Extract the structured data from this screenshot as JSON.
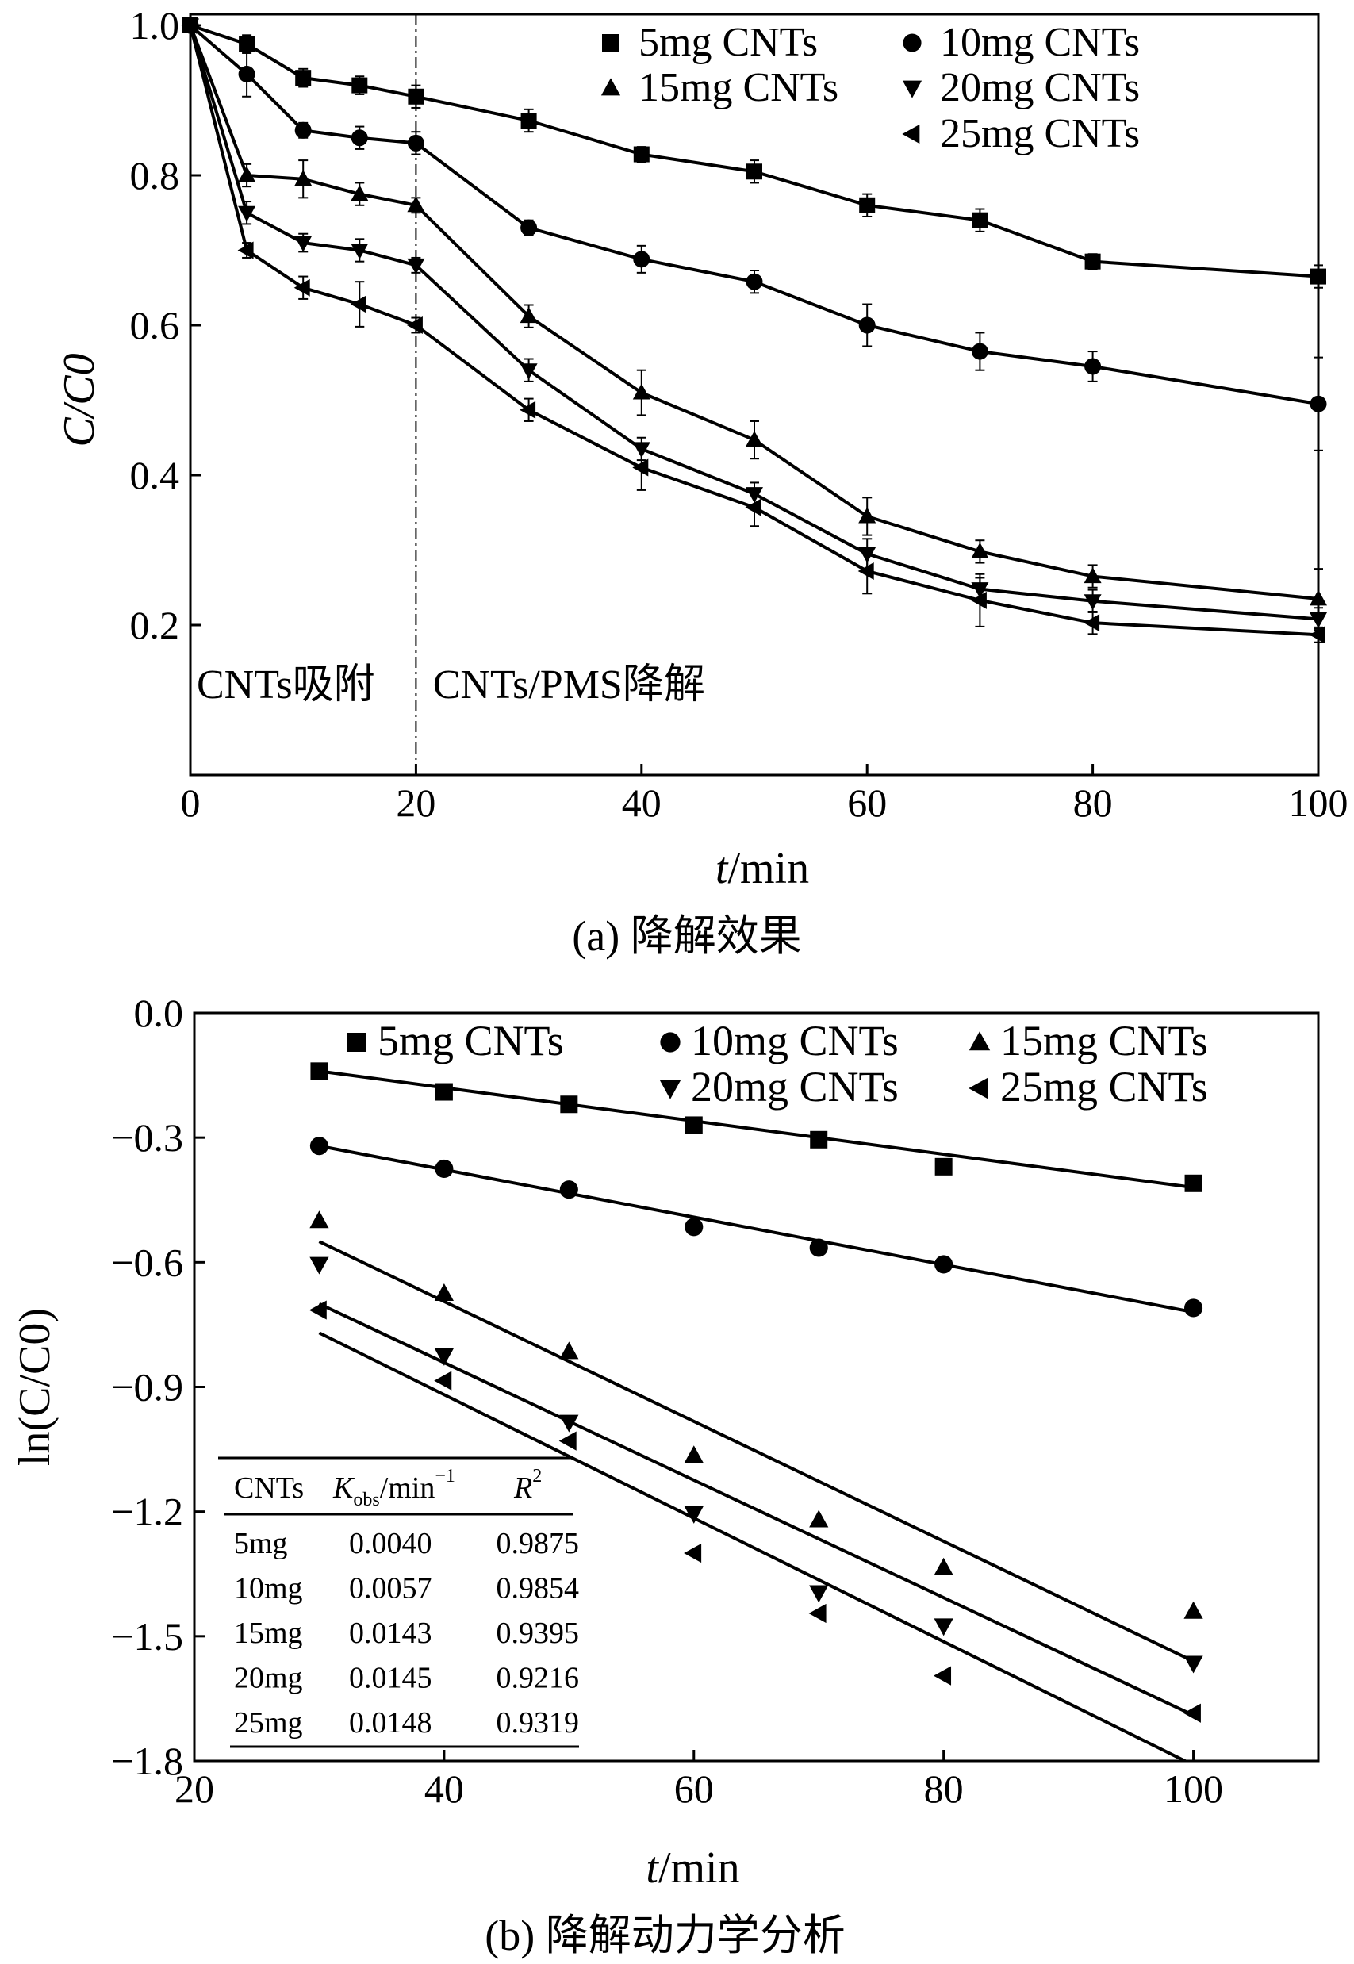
{
  "chart_data": [
    {
      "type": "line",
      "title": "(a) 降解效果",
      "xlabel_italic": "t",
      "xlabel_unit": "/min",
      "ylabel": "C/C0",
      "xlim": [
        0,
        100
      ],
      "ylim": [
        0,
        1.0
      ],
      "xticks": [
        0,
        20,
        40,
        60,
        80,
        100
      ],
      "yticks": [
        0.2,
        0.4,
        0.6,
        0.8,
        1.0
      ],
      "ytick_labels": [
        "0.2",
        "0.4",
        "0.6",
        "0.8",
        "1.0"
      ],
      "annotations": {
        "left": "CNTs吸附",
        "right": "CNTs/PMS降解",
        "divider_x": 20
      },
      "legend_position": "top-right",
      "x": [
        0,
        5,
        10,
        15,
        20,
        30,
        40,
        50,
        60,
        70,
        80,
        100
      ],
      "series": [
        {
          "name": "5mg CNTs",
          "marker": "square",
          "values": [
            1.0,
            0.975,
            0.93,
            0.92,
            0.905,
            0.873,
            0.828,
            0.805,
            0.76,
            0.74,
            0.685,
            0.665
          ],
          "errors": [
            0,
            0.012,
            0.012,
            0.012,
            0.015,
            0.015,
            0.01,
            0.015,
            0.015,
            0.015,
            0.01,
            0.015
          ]
        },
        {
          "name": "10mg CNTs",
          "marker": "circle",
          "values": [
            1.0,
            0.935,
            0.86,
            0.85,
            0.843,
            0.73,
            0.688,
            0.658,
            0.6,
            0.565,
            0.545,
            0.495
          ],
          "errors": [
            0,
            0.03,
            0.01,
            0.015,
            0.015,
            0.01,
            0.018,
            0.015,
            0.028,
            0.025,
            0.02,
            0.062
          ]
        },
        {
          "name": "15mg CNTs",
          "marker": "triangle-up",
          "values": [
            1.0,
            0.8,
            0.795,
            0.775,
            0.76,
            0.612,
            0.51,
            0.447,
            0.345,
            0.298,
            0.265,
            0.235
          ],
          "errors": [
            0,
            0.015,
            0.025,
            0.015,
            0.01,
            0.015,
            0.03,
            0.025,
            0.025,
            0.015,
            0.015,
            0.04
          ]
        },
        {
          "name": "20mg CNTs",
          "marker": "triangle-down",
          "values": [
            1.0,
            0.75,
            0.71,
            0.7,
            0.68,
            0.54,
            0.435,
            0.375,
            0.295,
            0.248,
            0.232,
            0.208
          ],
          "errors": [
            0,
            0.015,
            0.012,
            0.015,
            0.01,
            0.015,
            0.015,
            0.015,
            0.02,
            0.015,
            0.015,
            0.015
          ]
        },
        {
          "name": "25mg CNTs",
          "marker": "triangle-left",
          "values": [
            1.0,
            0.7,
            0.65,
            0.628,
            0.6,
            0.487,
            0.41,
            0.357,
            0.272,
            0.233,
            0.203,
            0.187
          ],
          "errors": [
            0,
            0.01,
            0.015,
            0.03,
            0.01,
            0.015,
            0.03,
            0.025,
            0.03,
            0.035,
            0.015,
            0.01
          ]
        }
      ]
    },
    {
      "type": "scatter",
      "title": "(b) 降解动力学分析",
      "xlabel_italic": "t",
      "xlabel_unit": "/min",
      "ylabel": "ln(C/C0)",
      "xlim": [
        20,
        110
      ],
      "ylim": [
        -1.8,
        0.0
      ],
      "xticks": [
        20,
        40,
        60,
        80,
        100
      ],
      "yticks": [
        0.0,
        -0.3,
        -0.6,
        -0.9,
        -1.2,
        -1.5,
        -1.8
      ],
      "ytick_labels": [
        "0.0",
        "−0.3",
        "−0.6",
        "−0.9",
        "−1.2",
        "−1.5",
        "−1.8"
      ],
      "legend_position": "top",
      "x": [
        30,
        40,
        50,
        60,
        70,
        80,
        100
      ],
      "series": [
        {
          "name": "5mg CNTs",
          "marker": "square",
          "values": [
            -0.14,
            -0.19,
            -0.22,
            -0.27,
            -0.305,
            -0.37,
            -0.41
          ],
          "fit": [
            [
              30,
              -0.14
            ],
            [
              100,
              -0.42
            ]
          ]
        },
        {
          "name": "10mg CNTs",
          "marker": "circle",
          "values": [
            -0.32,
            -0.375,
            -0.425,
            -0.515,
            -0.565,
            -0.605,
            -0.71
          ],
          "fit": [
            [
              30,
              -0.32
            ],
            [
              100,
              -0.72
            ]
          ]
        },
        {
          "name": "15mg CNTs",
          "marker": "triangle-up",
          "values": [
            -0.5,
            -0.675,
            -0.815,
            -1.065,
            -1.22,
            -1.335,
            -1.44
          ],
          "fit": [
            [
              30,
              -0.55
            ],
            [
              100,
              -1.56
            ]
          ]
        },
        {
          "name": "20mg CNTs",
          "marker": "triangle-down",
          "values": [
            -0.605,
            -0.825,
            -0.985,
            -1.205,
            -1.395,
            -1.475,
            -1.565
          ],
          "fit": [
            [
              30,
              -0.7
            ],
            [
              100,
              -1.69
            ]
          ]
        },
        {
          "name": "25mg CNTs",
          "marker": "triangle-left",
          "values": [
            -0.715,
            -0.885,
            -1.03,
            -1.3,
            -1.445,
            -1.595,
            -1.685
          ],
          "fit": [
            [
              30,
              -0.77
            ],
            [
              100,
              -1.81
            ]
          ]
        }
      ],
      "table": {
        "headers": [
          "CNTs",
          "K",
          "obs",
          "/min",
          "−1",
          "R",
          "2"
        ],
        "rows": [
          [
            "5mg",
            "0.0040",
            "0.9875"
          ],
          [
            "10mg",
            "0.0057",
            "0.9854"
          ],
          [
            "15mg",
            "0.0143",
            "0.9395"
          ],
          [
            "20mg",
            "0.0145",
            "0.9216"
          ],
          [
            "25mg",
            "0.0148",
            "0.9319"
          ]
        ]
      }
    }
  ]
}
